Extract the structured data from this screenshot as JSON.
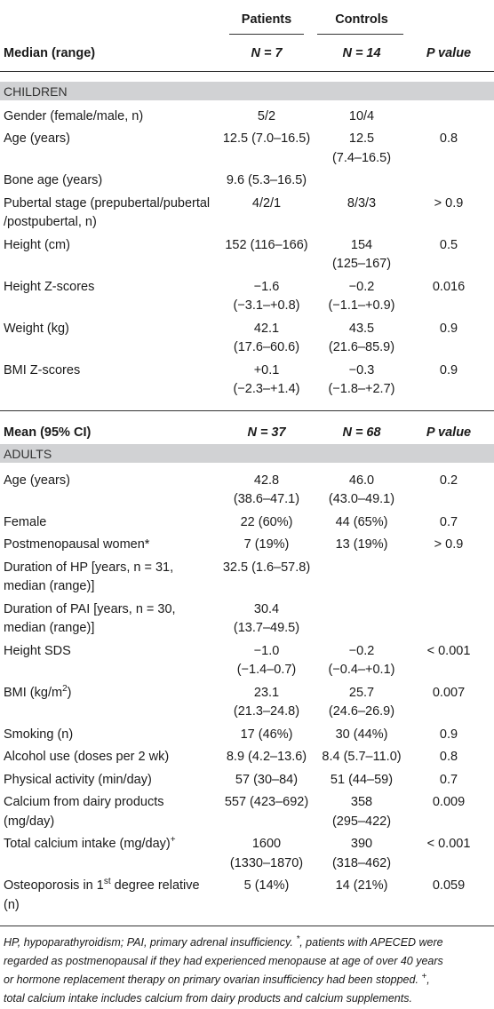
{
  "header": {
    "patients": "Patients",
    "controls": "Controls"
  },
  "sections": [
    {
      "columns": [
        "Median (range)",
        "N = 7",
        "N = 14",
        "P value"
      ],
      "band": "CHILDREN",
      "rows": [
        {
          "label": [
            "Gender (female/male, n)"
          ],
          "patients": [
            "5/2"
          ],
          "controls": [
            "10/4"
          ],
          "p": []
        },
        {
          "label": [
            "Age (years)"
          ],
          "patients": [
            "12.5 (7.0–16.5)"
          ],
          "controls": [
            "12.5",
            "(7.4–16.5)"
          ],
          "p": [
            "0.8"
          ]
        },
        {
          "label": [
            "Bone age (years)"
          ],
          "patients": [
            "9.6 (5.3–16.5)"
          ],
          "controls": [],
          "p": []
        },
        {
          "label": [
            "Pubertal stage (prepubertal/pubertal",
            "/postpubertal, n)"
          ],
          "patients": [
            "4/2/1"
          ],
          "controls": [
            "8/3/3"
          ],
          "p": [
            "> 0.9"
          ]
        },
        {
          "label": [
            "Height (cm)"
          ],
          "patients": [
            "152 (116–166)"
          ],
          "controls": [
            "154",
            "(125–167)"
          ],
          "p": [
            "0.5"
          ]
        },
        {
          "label": [
            "Height Z-scores"
          ],
          "patients": [
            "−1.6",
            "(−3.1–+0.8)"
          ],
          "controls": [
            "−0.2",
            "(−1.1–+0.9)"
          ],
          "p": [
            "0.016"
          ]
        },
        {
          "label": [
            "Weight (kg)"
          ],
          "patients": [
            "42.1",
            "(17.6–60.6)"
          ],
          "controls": [
            "43.5",
            "(21.6–85.9)"
          ],
          "p": [
            "0.9"
          ]
        },
        {
          "label": [
            "BMI Z-scores"
          ],
          "patients": [
            "+0.1",
            "(−2.3–+1.4)"
          ],
          "controls": [
            "−0.3",
            "(−1.8–+2.7)"
          ],
          "p": [
            "0.9"
          ]
        }
      ]
    },
    {
      "columns": [
        "Mean (95% CI)",
        "N = 37",
        "N = 68",
        "P value"
      ],
      "band": "ADULTS",
      "rows": [
        {
          "label": [
            "Age (years)"
          ],
          "patients": [
            "42.8",
            "(38.6–47.1)"
          ],
          "controls": [
            "46.0",
            "(43.0–49.1)"
          ],
          "p": [
            "0.2"
          ]
        },
        {
          "label": [
            "Female"
          ],
          "patients": [
            "22 (60%)"
          ],
          "controls": [
            "44 (65%)"
          ],
          "p": [
            "0.7"
          ]
        },
        {
          "label": [
            "Postmenopausal women*"
          ],
          "patients": [
            "7 (19%)"
          ],
          "controls": [
            "13 (19%)"
          ],
          "p": [
            "> 0.9"
          ]
        },
        {
          "label": [
            "Duration of HP [years, n = 31,",
            "median (range)]"
          ],
          "patients": [
            "32.5 (1.6–57.8)"
          ],
          "controls": [],
          "p": []
        },
        {
          "label": [
            "Duration of PAI [years, n = 30,",
            "median (range)]"
          ],
          "patients": [
            "30.4",
            "(13.7–49.5)"
          ],
          "controls": [],
          "p": []
        },
        {
          "label": [
            "Height SDS"
          ],
          "patients": [
            "−1.0",
            "(−1.4–0.7)"
          ],
          "controls": [
            "−0.2",
            "(−0.4–+0.1)"
          ],
          "p": [
            "< 0.001"
          ]
        },
        {
          "label": [
            {
              "text": "BMI (kg/m",
              "sup": "2",
              "tail": ")"
            }
          ],
          "patients": [
            "23.1",
            "(21.3–24.8)"
          ],
          "controls": [
            "25.7",
            "(24.6–26.9)"
          ],
          "p": [
            "0.007"
          ]
        },
        {
          "label": [
            "Smoking (n)"
          ],
          "patients": [
            "17 (46%)"
          ],
          "controls": [
            "30 (44%)"
          ],
          "p": [
            "0.9"
          ]
        },
        {
          "label": [
            "Alcohol use (doses per 2 wk)"
          ],
          "patients": [
            "8.9 (4.2–13.6)"
          ],
          "controls": [
            "8.4 (5.7–11.0)"
          ],
          "p": [
            "0.8"
          ]
        },
        {
          "label": [
            "Physical activity (min/day)"
          ],
          "patients": [
            "57 (30–84)"
          ],
          "controls": [
            "51 (44–59)"
          ],
          "p": [
            "0.7"
          ]
        },
        {
          "label": [
            "Calcium from dairy products",
            "(mg/day)"
          ],
          "patients": [
            "557 (423–692)"
          ],
          "controls": [
            "358",
            "(295–422)"
          ],
          "p": [
            "0.009"
          ]
        },
        {
          "label": [
            {
              "text": "Total calcium intake (mg/day)",
              "sup": "+"
            }
          ],
          "patients": [
            "1600",
            "(1330–1870)"
          ],
          "controls": [
            "390",
            "(318–462)"
          ],
          "p": [
            "< 0.001"
          ]
        },
        {
          "label": [
            {
              "text": "Osteoporosis in 1",
              "sup": "st",
              "tail": " degree relative"
            },
            "(n)"
          ],
          "patients": [
            "5 (14%)"
          ],
          "controls": [
            "14 (21%)"
          ],
          "p": [
            "0.059"
          ]
        }
      ]
    }
  ],
  "footnote": [
    {
      "text": "HP, hypoparathyroidism; PAI, primary adrenal insufficiency. ",
      "sup": "*",
      "tail": ", patients with APECED were"
    },
    "regarded as postmenopausal if they had experienced menopause at age of over 40 years",
    {
      "text": "or hormone replacement therapy on primary ovarian insufficiency had been stopped. ",
      "sup": "+",
      "tail": ","
    },
    "total calcium intake includes calcium from dairy products and calcium supplements."
  ]
}
